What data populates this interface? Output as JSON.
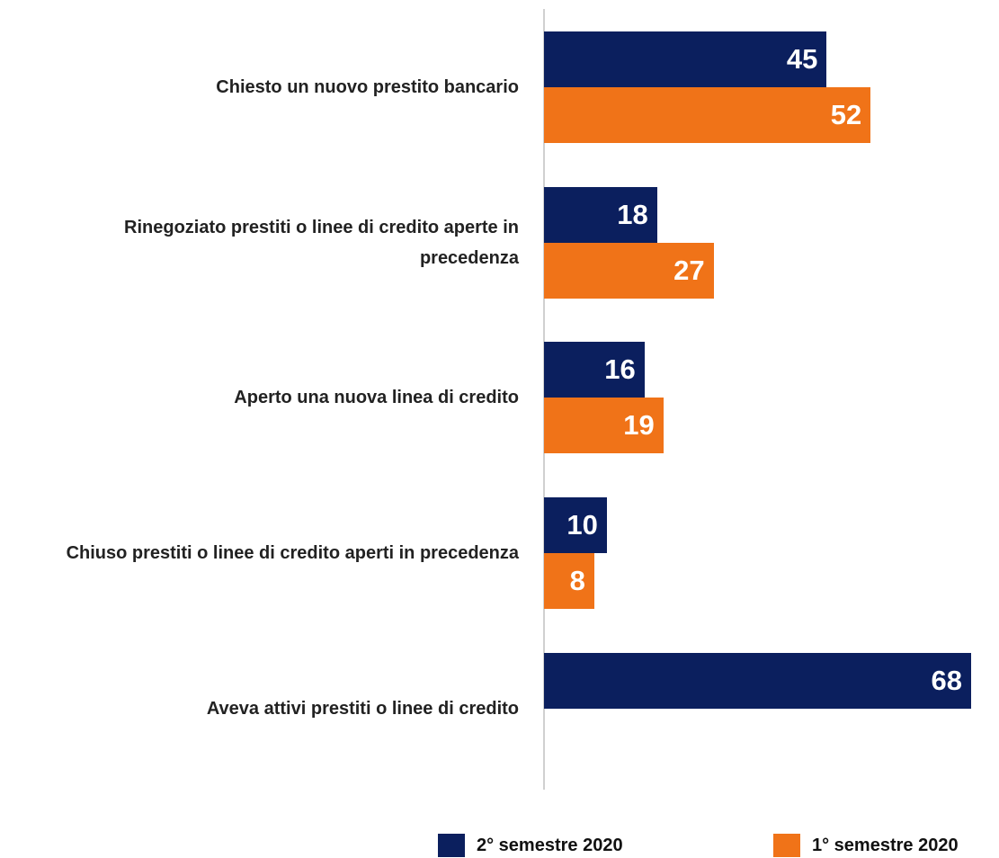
{
  "chart_data": {
    "type": "bar",
    "orientation": "horizontal",
    "categories": [
      "Chiesto un nuovo prestito bancario",
      "Rinegoziato prestiti o linee di credito aperte in precedenza",
      "Aperto una nuova linea di credito",
      "Chiuso prestiti o linee di credito aperti in precedenza",
      "Aveva attivi prestiti o linee di credito"
    ],
    "series": [
      {
        "name": "2° semestre 2020",
        "color": "#0b1f5e",
        "values": [
          45,
          18,
          16,
          10,
          68
        ]
      },
      {
        "name": "1° semestre 2020",
        "color": "#f07318",
        "values": [
          52,
          27,
          19,
          8,
          null
        ]
      }
    ],
    "xlim": [
      0,
      68
    ],
    "grid": false
  }
}
